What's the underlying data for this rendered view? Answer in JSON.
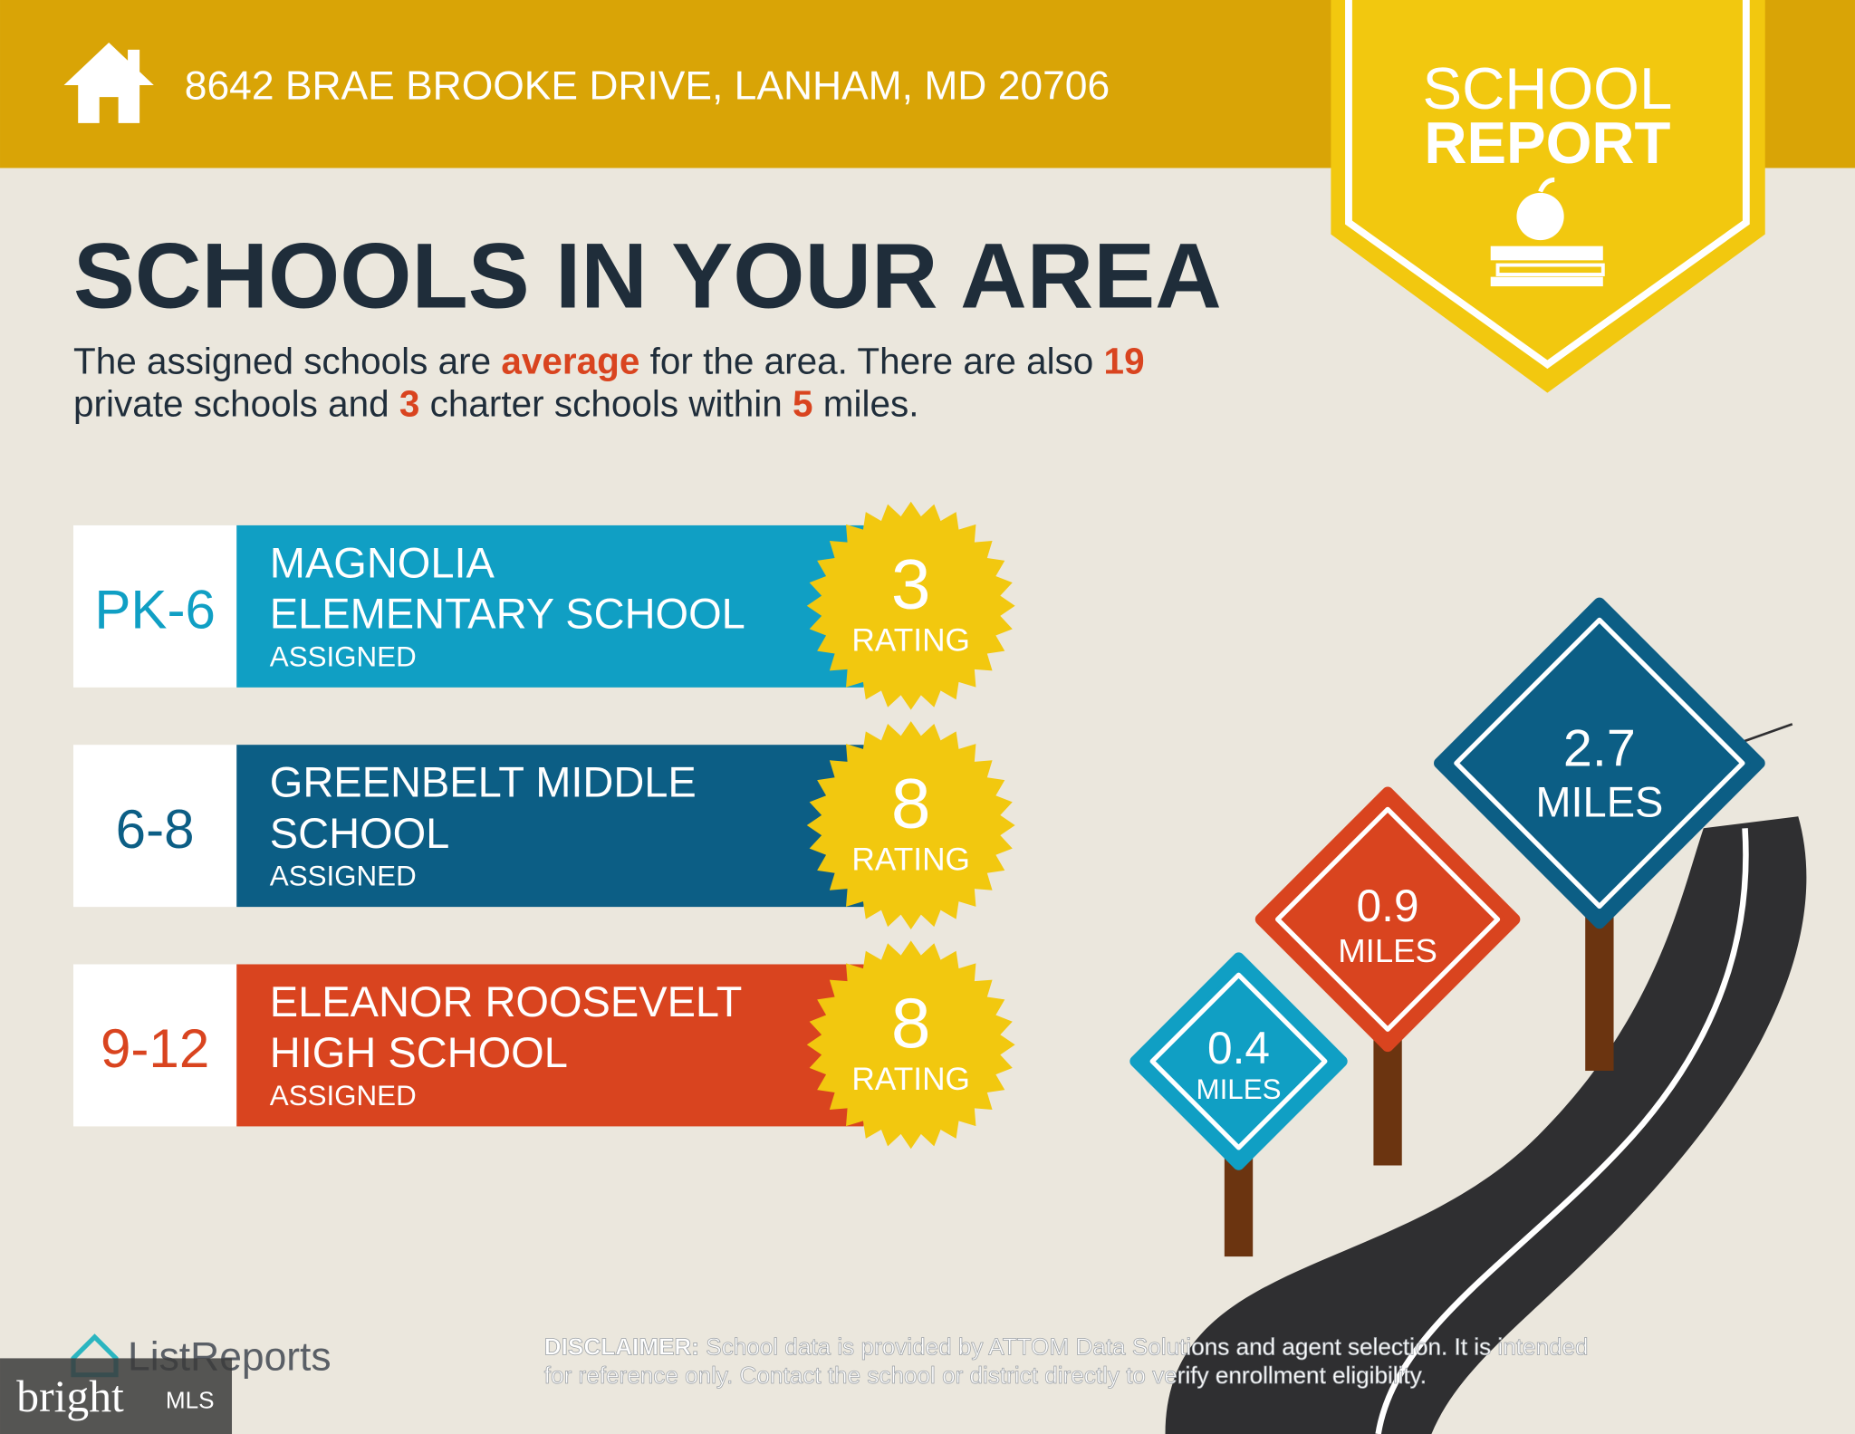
{
  "header": {
    "address": "8642 BRAE BROOKE DRIVE, LANHAM, MD 20706"
  },
  "badge": {
    "line1": "SCHOOL",
    "line2": "REPORT"
  },
  "title": "SCHOOLS IN YOUR AREA",
  "summary": {
    "p1": "The assigned schools are ",
    "quality": "average",
    "p2": " for the area. There are also ",
    "private_count": 19,
    "p3": "private schools and ",
    "charter_count": 3,
    "p4": " charter schools within ",
    "radius": 5,
    "p5": " miles."
  },
  "schools": [
    {
      "grades": "PK-6",
      "name_lines": [
        "MAGNOLIA",
        "ELEMENTARY SCHOOL"
      ],
      "status": "ASSIGNED",
      "rating": 3,
      "rating_label": "RATING"
    },
    {
      "grades": "6-8",
      "name_lines": [
        "GREENBELT MIDDLE",
        "SCHOOL"
      ],
      "status": "ASSIGNED",
      "rating": 8,
      "rating_label": "RATING"
    },
    {
      "grades": "9-12",
      "name_lines": [
        "ELEANOR ROOSEVELT",
        "HIGH SCHOOL"
      ],
      "status": "ASSIGNED",
      "rating": 8,
      "rating_label": "RATING"
    }
  ],
  "distances": [
    {
      "value": "2.7",
      "unit": "MILES"
    },
    {
      "value": "0.9",
      "unit": "MILES"
    },
    {
      "value": "0.4",
      "unit": "MILES"
    }
  ],
  "footer": {
    "logo": "ListReports",
    "disclaimer_label": "DISCLAIMER:",
    "disclaimer_line1": " School data is provided by ATTOM Data Solutions and agent selection. It is intended",
    "disclaimer_line2": "for reference only. Contact the school or district directly to verify enrollment eligibility.",
    "mls_brand": "bright",
    "mls_suffix": "MLS"
  }
}
